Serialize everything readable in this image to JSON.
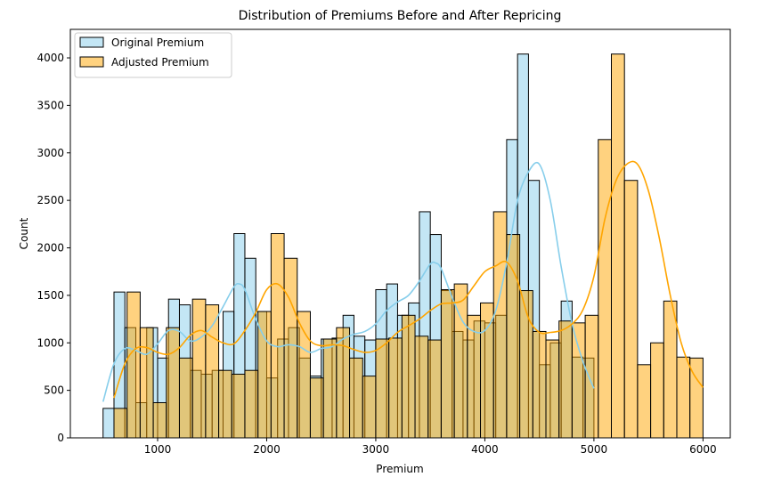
{
  "chart_data": {
    "type": "bar",
    "title": "Distribution of Premiums Before and After Repricing",
    "xlabel": "Premium",
    "ylabel": "Count",
    "xlim": [
      200,
      6250
    ],
    "ylim": [
      0,
      4300
    ],
    "x_ticks": [
      1000,
      2000,
      3000,
      4000,
      5000,
      6000
    ],
    "y_ticks": [
      0,
      500,
      1000,
      1500,
      2000,
      2500,
      3000,
      3500,
      4000
    ],
    "grid": false,
    "legend_position": "top-left",
    "series": [
      {
        "name": "Original Premium",
        "kind": "histogram",
        "color": "#87ceeb",
        "edge_color": "#000000",
        "bin_edges": [
          500,
          600,
          700,
          800,
          900,
          1000,
          1100,
          1200,
          1300,
          1400,
          1500,
          1600,
          1700,
          1800,
          1900,
          2000,
          2100,
          2200,
          2300,
          2400,
          2500,
          2600,
          2700,
          2800,
          2900,
          3000,
          3100,
          3200,
          3300,
          3400,
          3500,
          3600,
          3700,
          3800,
          3900,
          4000,
          4100,
          4200,
          4300,
          4400,
          4500,
          4600,
          4700,
          4800,
          4900,
          5000
        ],
        "counts": [
          310,
          1535,
          1160,
          370,
          1160,
          840,
          1460,
          1400,
          710,
          670,
          710,
          1330,
          2150,
          1890,
          1330,
          630,
          1040,
          1160,
          840,
          650,
          1040,
          1050,
          1290,
          1070,
          1030,
          1560,
          1620,
          1290,
          1420,
          2380,
          2140,
          1550,
          1120,
          1030,
          1230,
          1210,
          1290,
          3140,
          4040,
          2710,
          770,
          1000,
          1440,
          850,
          840
        ],
        "kde_x": [
          500,
          600,
          700,
          800,
          900,
          1000,
          1100,
          1200,
          1300,
          1400,
          1500,
          1600,
          1700,
          1750,
          1800,
          1900,
          2000,
          2100,
          2200,
          2300,
          2400,
          2500,
          2600,
          2700,
          2800,
          2900,
          3000,
          3100,
          3200,
          3300,
          3400,
          3500,
          3550,
          3600,
          3700,
          3800,
          3900,
          4000,
          4100,
          4200,
          4300,
          4400,
          4500,
          4600,
          4700,
          4800,
          4900,
          5000
        ],
        "kde_y": [
          380,
          780,
          940,
          920,
          880,
          990,
          1130,
          1120,
          1020,
          1060,
          1180,
          1380,
          1590,
          1620,
          1560,
          1250,
          1020,
          960,
          980,
          960,
          900,
          940,
          960,
          1040,
          1090,
          1120,
          1200,
          1340,
          1430,
          1500,
          1650,
          1830,
          1840,
          1780,
          1480,
          1220,
          1120,
          1130,
          1340,
          1840,
          2500,
          2800,
          2880,
          2500,
          1800,
          1200,
          800,
          520
        ]
      },
      {
        "name": "Adjusted Premium",
        "kind": "histogram",
        "color": "#ffa500",
        "edge_color": "#000000",
        "bin_edges": [
          600,
          720,
          840,
          960,
          1080,
          1200,
          1320,
          1440,
          1560,
          1680,
          1800,
          1920,
          2040,
          2160,
          2280,
          2400,
          2520,
          2640,
          2760,
          2880,
          3000,
          3120,
          3240,
          3360,
          3480,
          3600,
          3720,
          3840,
          3960,
          4080,
          4200,
          4320,
          4440,
          4560,
          4680,
          4800,
          4920,
          5040,
          5160,
          5280,
          5400,
          5520,
          5640,
          5760,
          5880,
          6000
        ],
        "counts": [
          310,
          1535,
          1160,
          370,
          1160,
          840,
          1460,
          1400,
          710,
          670,
          710,
          1330,
          2150,
          1890,
          1330,
          630,
          1040,
          1160,
          840,
          650,
          1040,
          1050,
          1290,
          1070,
          1030,
          1560,
          1620,
          1290,
          1420,
          2380,
          2140,
          1550,
          1120,
          1030,
          1230,
          1210,
          1290,
          3140,
          4040,
          2710,
          770,
          1000,
          1440,
          850,
          840
        ],
        "kde_x": [
          600,
          700,
          800,
          900,
          1000,
          1100,
          1200,
          1300,
          1400,
          1500,
          1600,
          1700,
          1800,
          1900,
          2000,
          2100,
          2200,
          2300,
          2400,
          2500,
          2600,
          2700,
          2800,
          2900,
          3000,
          3100,
          3200,
          3300,
          3400,
          3500,
          3600,
          3700,
          3800,
          3900,
          4000,
          4100,
          4200,
          4300,
          4400,
          4500,
          4600,
          4700,
          4800,
          4900,
          5000,
          5100,
          5200,
          5300,
          5400,
          5500,
          5600,
          5700,
          5800,
          5900,
          6000
        ],
        "kde_y": [
          420,
          780,
          940,
          950,
          900,
          880,
          950,
          1080,
          1130,
          1060,
          1000,
          990,
          1130,
          1320,
          1560,
          1620,
          1480,
          1210,
          1020,
          970,
          980,
          970,
          930,
          900,
          920,
          1000,
          1110,
          1180,
          1250,
          1340,
          1410,
          1420,
          1450,
          1600,
          1750,
          1810,
          1850,
          1650,
          1260,
          1110,
          1110,
          1130,
          1200,
          1350,
          1700,
          2300,
          2700,
          2880,
          2880,
          2600,
          2100,
          1500,
          1000,
          700,
          530
        ]
      }
    ]
  }
}
